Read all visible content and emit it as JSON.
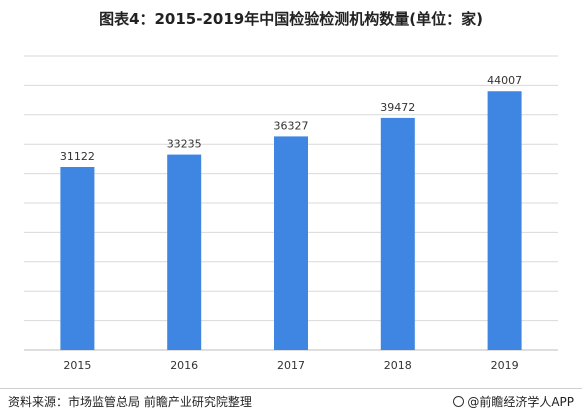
{
  "chart_data": {
    "type": "bar",
    "title": "图表4：2015-2019年中国检验检测机构数量(单位：家)",
    "categories": [
      "2015",
      "2016",
      "2017",
      "2018",
      "2019"
    ],
    "values": [
      31122,
      33235,
      36327,
      39472,
      44007
    ],
    "ylim": [
      0,
      50000
    ],
    "ytick_step": 5000,
    "grid": true,
    "bar_color": "#3f86e3"
  },
  "footer": {
    "source": "资料来源：市场监管总局 前瞻产业研究院整理",
    "brand": "@前瞻经济学人APP"
  }
}
